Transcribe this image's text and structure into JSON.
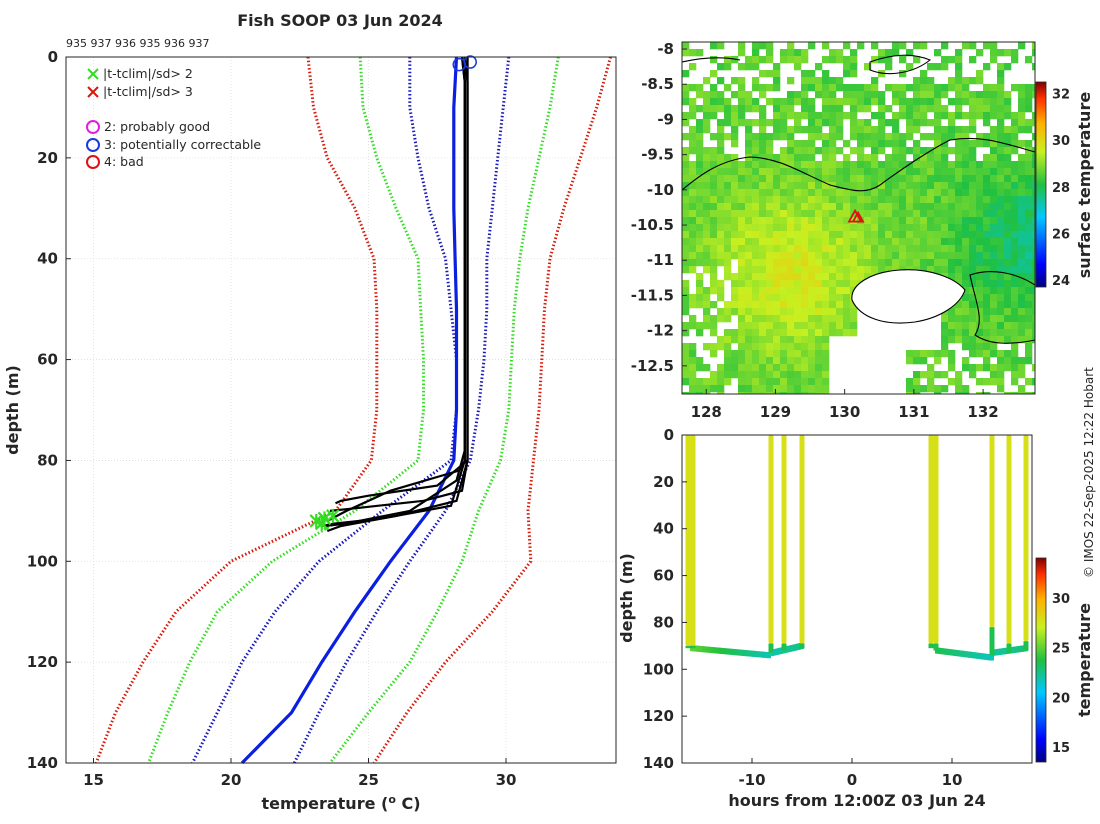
{
  "title": "Fish SOOP 03 Jun 2024",
  "cruise_ids": "935 937 936 935 936 937",
  "credit": "© IMOS 22-Sep-2025 12:22 Hobart",
  "colors": {
    "obs_profile": "#000000",
    "mean_profile": "#0a1fe0",
    "sd1": "#1a1ab8",
    "sd2": "#33dd22",
    "sd3": "#d81a0a",
    "flag_good": "#e020e0",
    "flag_correctable": "#1a3adc",
    "flag_bad": "#e01010",
    "ship_marker": "#e01010"
  },
  "legend": {
    "cross_2": "|t-tclim|/sd> 2",
    "cross_3": "|t-tclim|/sd> 3",
    "flag_2": "2: probably good",
    "flag_3": "3: potentially correctable",
    "flag_4": "4: bad"
  },
  "chart_data": [
    {
      "type": "line",
      "id": "profile",
      "xlabel": "temperature (",
      "xlabel_sup": "o",
      "xlabel_end": " C)",
      "ylabel": "depth (m)",
      "xlim": [
        14,
        34
      ],
      "ylim": [
        140,
        0
      ],
      "xticks": [
        15,
        20,
        25,
        30
      ],
      "yticks": [
        0,
        20,
        40,
        60,
        80,
        100,
        120,
        140
      ],
      "grid": true,
      "climatology": [
        {
          "name": "-3sd",
          "color_key": "sd3",
          "points": [
            [
              22.8,
              0
            ],
            [
              23.0,
              10
            ],
            [
              23.5,
              20
            ],
            [
              24.5,
              30
            ],
            [
              25.2,
              40
            ],
            [
              25.3,
              50
            ],
            [
              25.3,
              60
            ],
            [
              25.3,
              70
            ],
            [
              25.1,
              80
            ],
            [
              23.8,
              90
            ],
            [
              20,
              100
            ],
            [
              18,
              110
            ],
            [
              16.8,
              120
            ],
            [
              15.8,
              130
            ],
            [
              15.1,
              140
            ]
          ]
        },
        {
          "name": "-2sd",
          "color_key": "sd2",
          "points": [
            [
              24.7,
              0
            ],
            [
              24.8,
              10
            ],
            [
              25.3,
              20
            ],
            [
              26.0,
              30
            ],
            [
              26.8,
              40
            ],
            [
              26.9,
              50
            ],
            [
              27.0,
              60
            ],
            [
              27.0,
              70
            ],
            [
              26.8,
              80
            ],
            [
              24.5,
              90
            ],
            [
              21.5,
              100
            ],
            [
              19.5,
              110
            ],
            [
              18.5,
              120
            ],
            [
              17.7,
              130
            ],
            [
              17.0,
              140
            ]
          ]
        },
        {
          "name": "-1sd",
          "color_key": "sd1",
          "points": [
            [
              26.5,
              0
            ],
            [
              26.5,
              10
            ],
            [
              26.8,
              20
            ],
            [
              27.2,
              30
            ],
            [
              27.8,
              40
            ],
            [
              28.0,
              50
            ],
            [
              28.2,
              60
            ],
            [
              28.2,
              70
            ],
            [
              28.0,
              80
            ],
            [
              25.5,
              90
            ],
            [
              23.2,
              100
            ],
            [
              21.6,
              110
            ],
            [
              20.4,
              120
            ],
            [
              19.5,
              130
            ],
            [
              18.6,
              140
            ]
          ]
        },
        {
          "name": "+1sd",
          "color_key": "sd1",
          "points": [
            [
              30.1,
              0
            ],
            [
              29.9,
              10
            ],
            [
              29.7,
              20
            ],
            [
              29.5,
              30
            ],
            [
              29.3,
              40
            ],
            [
              29.3,
              50
            ],
            [
              29.2,
              60
            ],
            [
              29.0,
              70
            ],
            [
              28.7,
              80
            ],
            [
              27.8,
              90
            ],
            [
              26.5,
              100
            ],
            [
              25.3,
              110
            ],
            [
              24.2,
              120
            ],
            [
              23.2,
              130
            ],
            [
              22.3,
              140
            ]
          ]
        },
        {
          "name": "+2sd",
          "color_key": "sd2",
          "points": [
            [
              31.9,
              0
            ],
            [
              31.6,
              10
            ],
            [
              31.2,
              20
            ],
            [
              30.8,
              30
            ],
            [
              30.5,
              40
            ],
            [
              30.3,
              50
            ],
            [
              30.2,
              60
            ],
            [
              30.1,
              70
            ],
            [
              29.8,
              80
            ],
            [
              29.0,
              90
            ],
            [
              28.4,
              100
            ],
            [
              27.5,
              110
            ],
            [
              26.5,
              120
            ],
            [
              25.0,
              130
            ],
            [
              23.6,
              140
            ]
          ]
        },
        {
          "name": "+3sd",
          "color_key": "sd3",
          "points": [
            [
              33.8,
              0
            ],
            [
              33.3,
              10
            ],
            [
              32.7,
              20
            ],
            [
              32.1,
              30
            ],
            [
              31.6,
              40
            ],
            [
              31.4,
              50
            ],
            [
              31.3,
              60
            ],
            [
              31.2,
              70
            ],
            [
              31.0,
              80
            ],
            [
              30.8,
              90
            ],
            [
              30.9,
              100
            ],
            [
              29.5,
              110
            ],
            [
              27.8,
              120
            ],
            [
              26.4,
              130
            ],
            [
              25.2,
              140
            ]
          ]
        }
      ],
      "mean_profile": [
        [
          28.2,
          0
        ],
        [
          28.1,
          10
        ],
        [
          28.1,
          20
        ],
        [
          28.1,
          30
        ],
        [
          28.15,
          40
        ],
        [
          28.2,
          50
        ],
        [
          28.2,
          60
        ],
        [
          28.2,
          70
        ],
        [
          28.1,
          80
        ],
        [
          27.2,
          90
        ],
        [
          25.8,
          100
        ],
        [
          24.5,
          110
        ],
        [
          23.3,
          120
        ],
        [
          22.2,
          130
        ],
        [
          20.4,
          140
        ]
      ],
      "observed_profiles": [
        [
          [
            28.4,
            0
          ],
          [
            28.5,
            5
          ],
          [
            28.5,
            20
          ],
          [
            28.5,
            40
          ],
          [
            28.5,
            60
          ],
          [
            28.5,
            78
          ],
          [
            28.2,
            84
          ],
          [
            26.5,
            90
          ],
          [
            24.2,
            92.5
          ],
          [
            23.4,
            93
          ]
        ],
        [
          [
            28.5,
            0
          ],
          [
            28.6,
            5
          ],
          [
            28.6,
            20
          ],
          [
            28.6,
            40
          ],
          [
            28.6,
            60
          ],
          [
            28.6,
            80
          ],
          [
            28.4,
            86
          ],
          [
            27.0,
            88
          ],
          [
            24.5,
            89.5
          ],
          [
            23.6,
            90
          ]
        ],
        [
          [
            28.6,
            0
          ],
          [
            28.6,
            5
          ],
          [
            28.6,
            20
          ],
          [
            28.6,
            40
          ],
          [
            28.6,
            60
          ],
          [
            28.6,
            80
          ],
          [
            28.2,
            88
          ],
          [
            26.0,
            91
          ],
          [
            24.0,
            93
          ],
          [
            23.5,
            94
          ]
        ],
        [
          [
            28.5,
            0
          ],
          [
            28.5,
            5
          ],
          [
            28.5,
            20
          ],
          [
            28.5,
            40
          ],
          [
            28.5,
            60
          ],
          [
            28.5,
            80
          ],
          [
            28.0,
            89
          ],
          [
            25.5,
            91.5
          ],
          [
            23.8,
            92.5
          ],
          [
            23.3,
            93
          ]
        ],
        [
          [
            28.6,
            0
          ],
          [
            28.6,
            5
          ],
          [
            28.6,
            20
          ],
          [
            28.6,
            40
          ],
          [
            28.6,
            60
          ],
          [
            28.6,
            80
          ],
          [
            27.5,
            85
          ],
          [
            25.0,
            87
          ],
          [
            24.0,
            88
          ],
          [
            23.8,
            88.5
          ]
        ],
        [
          [
            28.4,
            0
          ],
          [
            28.5,
            5
          ],
          [
            28.5,
            20
          ],
          [
            28.5,
            40
          ],
          [
            28.5,
            60
          ],
          [
            28.5,
            80
          ],
          [
            28.3,
            82
          ],
          [
            25.8,
            86
          ],
          [
            24.2,
            90
          ],
          [
            23.5,
            92
          ]
        ]
      ],
      "qc_circles": [
        [
          28.3,
          1.5
        ],
        [
          28.7,
          1.0
        ]
      ],
      "outlier_crosses": [
        [
          23.1,
          92
        ],
        [
          23.4,
          91.5
        ],
        [
          23.7,
          91
        ],
        [
          23.3,
          92.5
        ]
      ]
    },
    {
      "type": "heatmap",
      "id": "map",
      "colorbar_label": "surface temperature",
      "xlim": [
        127.65,
        132.75
      ],
      "ylim": [
        -12.9,
        -7.9
      ],
      "xticks": [
        128,
        129,
        130,
        131,
        132
      ],
      "yticks": [
        -8,
        -8.5,
        -9,
        -9.5,
        -10,
        -10.5,
        -11,
        -11.5,
        -12,
        -12.5
      ],
      "colorbar_ticks": [
        24,
        26,
        28,
        30,
        32
      ],
      "clim": [
        23.7,
        32.5
      ],
      "ship_position": [
        130.15,
        -10.38
      ]
    },
    {
      "type": "scatter",
      "id": "section",
      "xlabel": "hours from 12:00Z 03 Jun 24",
      "ylabel": "depth (m)",
      "colorbar_label": "temperature",
      "xlim": [
        -17,
        18
      ],
      "ylim": [
        140,
        0
      ],
      "xticks": [
        -10,
        0,
        10
      ],
      "yticks": [
        0,
        20,
        40,
        60,
        80,
        100,
        120,
        140
      ],
      "colorbar_ticks": [
        15,
        20,
        25,
        30
      ],
      "clim": [
        13.5,
        34
      ],
      "drops": [
        {
          "hour": -16.4,
          "mld": 90,
          "bottom": 91
        },
        {
          "hour": -15.9,
          "mld": 90,
          "bottom": 91
        },
        {
          "hour": -8.1,
          "mld": 89,
          "bottom": 93
        },
        {
          "hour": -6.8,
          "mld": 89,
          "bottom": 92
        },
        {
          "hour": -5.0,
          "mld": 89,
          "bottom": 91
        },
        {
          "hour": 7.9,
          "mld": 89,
          "bottom": 91
        },
        {
          "hour": 8.4,
          "mld": 89,
          "bottom": 92
        },
        {
          "hour": 14.0,
          "mld": 82,
          "bottom": 94
        },
        {
          "hour": 15.7,
          "mld": 89,
          "bottom": 93
        },
        {
          "hour": 17.4,
          "mld": 88,
          "bottom": 92
        }
      ],
      "segments": [
        {
          "from": -16.0,
          "to": -8.3,
          "d1": 91,
          "d2": 94,
          "t1": 25,
          "t2": 21.8
        },
        {
          "from": -8.0,
          "to": -5.0,
          "d1": 93,
          "d2": 90,
          "t1": 21.8,
          "t2": 22.6
        },
        {
          "from": 8.5,
          "to": 14.0,
          "d1": 92,
          "d2": 95,
          "t1": 23.5,
          "t2": 21.6
        },
        {
          "from": 14.0,
          "to": 17.4,
          "d1": 93,
          "d2": 91,
          "t1": 22.0,
          "t2": 22.8
        }
      ]
    }
  ]
}
